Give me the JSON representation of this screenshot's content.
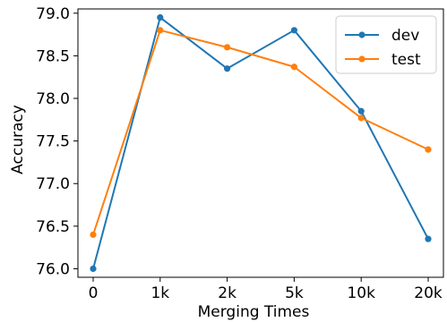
{
  "chart_data": {
    "type": "line",
    "title": "",
    "xlabel": "Merging Times",
    "ylabel": "Accuracy",
    "categories": [
      "0",
      "1k",
      "2k",
      "5k",
      "10k",
      "20k"
    ],
    "ylim": [
      75.9,
      79.05
    ],
    "yticks": [
      "76.0",
      "76.5",
      "77.0",
      "77.5",
      "78.0",
      "78.5",
      "79.0"
    ],
    "grid": false,
    "legend": "top-right",
    "series": [
      {
        "name": "dev",
        "color": "#1f77b4",
        "values": [
          76.0,
          78.95,
          78.35,
          78.8,
          77.85,
          76.35
        ]
      },
      {
        "name": "test",
        "color": "#ff7f0e",
        "values": [
          76.4,
          78.8,
          78.6,
          78.37,
          77.77,
          77.4
        ]
      }
    ]
  }
}
